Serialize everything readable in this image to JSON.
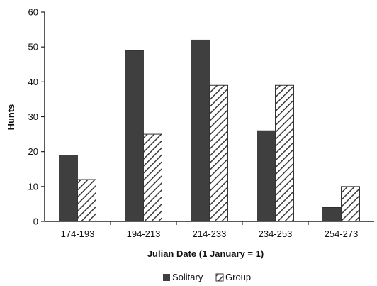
{
  "chart_data": {
    "type": "bar",
    "categories": [
      "174-193",
      "194-213",
      "214-233",
      "234-253",
      "254-273"
    ],
    "series": [
      {
        "name": "Solitary",
        "values": [
          19,
          49,
          52,
          26,
          4
        ],
        "color": "#3f3f3f",
        "pattern": "solid"
      },
      {
        "name": "Group",
        "values": [
          12,
          25,
          39,
          39,
          10
        ],
        "color": "#3f3f3f",
        "pattern": "diagonal-hatch"
      }
    ],
    "title": "",
    "xlabel": "Julian Date (1 January = 1)",
    "ylabel": "Hunts",
    "ylim": [
      0,
      60
    ],
    "yticks": [
      "0",
      "10",
      "20",
      "30",
      "40",
      "50",
      "60"
    ],
    "grid": false,
    "legend_position": "bottom-center"
  }
}
